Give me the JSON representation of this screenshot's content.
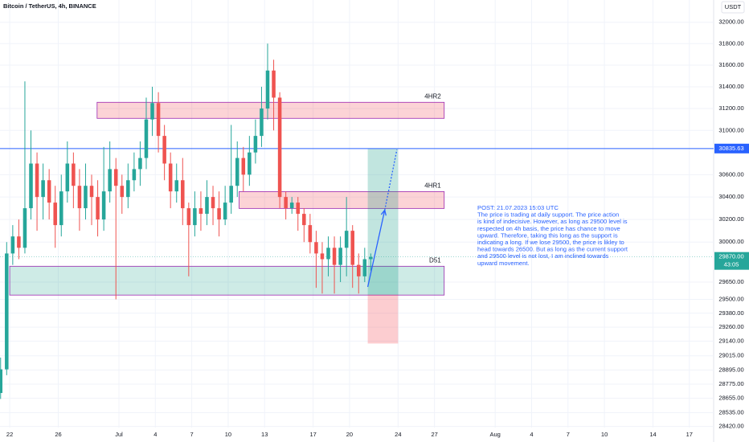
{
  "chart_data": {
    "type": "candlestick",
    "title": "Bitcoin / TetherUS, 4h, BINANCE",
    "currency": "USDT",
    "log_scale": true,
    "grid": true,
    "up_color": "#26a69a",
    "down_color": "#ef5350",
    "xlim": [
      -0.8,
      58
    ],
    "xticks": [
      {
        "value": 0,
        "label": "22"
      },
      {
        "value": 4,
        "label": "26"
      },
      {
        "value": 9,
        "label": "Jul"
      },
      {
        "value": 12,
        "label": "4"
      },
      {
        "value": 15,
        "label": "7"
      },
      {
        "value": 18,
        "label": "10"
      },
      {
        "value": 21,
        "label": "13"
      },
      {
        "value": 25,
        "label": "17"
      },
      {
        "value": 28,
        "label": "20"
      },
      {
        "value": 32,
        "label": "24"
      },
      {
        "value": 35,
        "label": "27"
      },
      {
        "value": 40,
        "label": "Aug"
      },
      {
        "value": 43,
        "label": "4"
      },
      {
        "value": 46,
        "label": "7"
      },
      {
        "value": 49,
        "label": "10"
      },
      {
        "value": 53,
        "label": "14"
      },
      {
        "value": 56,
        "label": "17"
      }
    ],
    "ylim": [
      28290,
      32210
    ],
    "yticks": [
      {
        "value": 32000,
        "label": "32000.00"
      },
      {
        "value": 31800,
        "label": "31800.00"
      },
      {
        "value": 31600,
        "label": "31600.00"
      },
      {
        "value": 31400,
        "label": "31400.00"
      },
      {
        "value": 31200,
        "label": "31200.00"
      },
      {
        "value": 31000,
        "label": "31000.00"
      },
      {
        "value": 30600,
        "label": "30600.00"
      },
      {
        "value": 30400,
        "label": "30400.00"
      },
      {
        "value": 30200,
        "label": "30200.00"
      },
      {
        "value": 30000,
        "label": "30000.00"
      },
      {
        "value": 29650,
        "label": "29650.00"
      },
      {
        "value": 29500,
        "label": "29500.00"
      },
      {
        "value": 29380,
        "label": "29380.00"
      },
      {
        "value": 29260,
        "label": "29260.00"
      },
      {
        "value": 29140,
        "label": "29140.00"
      },
      {
        "value": 29015,
        "label": "29015.00"
      },
      {
        "value": 28895,
        "label": "28895.00"
      },
      {
        "value": 28775,
        "label": "28775.00"
      },
      {
        "value": 28655,
        "label": "28655.00"
      },
      {
        "value": 28535,
        "label": "28535.00"
      },
      {
        "value": 28420,
        "label": "28420.00"
      }
    ],
    "candles": {
      "x": [
        -0.75,
        -0.25,
        0.25,
        0.75,
        1.25,
        1.75,
        2.25,
        2.75,
        3.25,
        3.75,
        4.25,
        4.75,
        5.25,
        5.75,
        6.25,
        6.75,
        7.25,
        7.75,
        8.25,
        8.75,
        9.25,
        9.75,
        10.25,
        10.75,
        11.25,
        11.75,
        12.25,
        12.75,
        13.25,
        13.75,
        14.25,
        14.75,
        15.25,
        15.75,
        16.25,
        16.75,
        17.25,
        17.75,
        18.25,
        18.75,
        19.25,
        19.75,
        20.25,
        20.75,
        21.25,
        21.75,
        22.25,
        22.75,
        23.25,
        23.75,
        24.25,
        24.75,
        25.25,
        25.75,
        26.25,
        26.75,
        27.25,
        27.75,
        28.25,
        28.75,
        29.25,
        29.75
      ],
      "open": [
        28700,
        28900,
        29900,
        30050,
        29950,
        30300,
        30700,
        30400,
        30550,
        30350,
        30150,
        30450,
        30700,
        30500,
        30300,
        30500,
        30400,
        30200,
        30450,
        30650,
        30500,
        30400,
        30550,
        30650,
        30750,
        31100,
        31250,
        30950,
        30700,
        30450,
        30550,
        30300,
        30150,
        30300,
        30250,
        30400,
        30300,
        30200,
        30350,
        30500,
        30750,
        30600,
        30800,
        30950,
        31200,
        31550,
        31300,
        30400,
        30300,
        30350,
        30250,
        30150,
        30000,
        29900,
        29850,
        29950,
        29800,
        29950,
        30100,
        29800,
        29700,
        29850
      ],
      "high": [
        29000,
        30000,
        30150,
        30200,
        31450,
        31000,
        30800,
        30700,
        30650,
        30500,
        30600,
        30900,
        30800,
        30650,
        30700,
        30600,
        30550,
        30850,
        30900,
        30750,
        30600,
        30700,
        30800,
        30900,
        31300,
        31400,
        31350,
        31050,
        30800,
        30700,
        30750,
        30350,
        30450,
        30450,
        30550,
        30500,
        30450,
        30500,
        31050,
        30900,
        30850,
        30950,
        31100,
        31400,
        31800,
        31650,
        31350,
        30450,
        30400,
        30400,
        30300,
        30250,
        30100,
        30000,
        30050,
        30050,
        30050,
        30400,
        30150,
        29900,
        29950,
        29900
      ],
      "low": [
        28650,
        28850,
        29800,
        29850,
        29900,
        30200,
        30100,
        30200,
        30200,
        29950,
        30050,
        30350,
        30300,
        30100,
        30200,
        30150,
        30050,
        30100,
        30350,
        29500,
        30250,
        30300,
        30450,
        30500,
        30650,
        30950,
        30800,
        30550,
        30300,
        30350,
        30150,
        29700,
        30050,
        30100,
        30150,
        30150,
        30050,
        30150,
        30250,
        30400,
        30450,
        30500,
        30700,
        30850,
        31100,
        31000,
        30300,
        30200,
        30250,
        30100,
        30000,
        29900,
        29600,
        29550,
        29700,
        29550,
        29650,
        29700,
        29600,
        29550,
        29650,
        29750
      ],
      "close": [
        28900,
        29900,
        30050,
        29950,
        30300,
        30700,
        30400,
        30550,
        30350,
        30150,
        30450,
        30700,
        30500,
        30300,
        30500,
        30400,
        30200,
        30450,
        30650,
        30500,
        30400,
        30550,
        30650,
        30750,
        31100,
        31250,
        30950,
        30700,
        30450,
        30550,
        30300,
        30150,
        30300,
        30250,
        30400,
        30300,
        30200,
        30350,
        30500,
        30750,
        30600,
        30800,
        30950,
        31200,
        31550,
        31300,
        30400,
        30300,
        30350,
        30250,
        30150,
        30000,
        29900,
        29850,
        29950,
        29800,
        29950,
        30100,
        29800,
        29700,
        29850,
        29870
      ]
    },
    "zones": [
      {
        "label": "4HR2",
        "start": 7.2,
        "end": 35.8,
        "top": 31257,
        "bottom": 31110,
        "fill": "rgba(242,54,69,0.22)",
        "stroke": "#9c27b0"
      },
      {
        "label": "4HR1",
        "start": 18.9,
        "end": 35.8,
        "top": 30448,
        "bottom": 30298,
        "fill": "rgba(242,54,69,0.22)",
        "stroke": "#9c27b0"
      },
      {
        "label": "D51",
        "start": 0,
        "end": 35.8,
        "top": 29788,
        "bottom": 29537,
        "fill": "rgba(8,153,129,0.2)",
        "stroke": "#9c27b0"
      }
    ],
    "position": {
      "start": 29.5,
      "end": 32.0,
      "target": 30835.63,
      "entry": 29540,
      "stop": 29120,
      "profit_color": "rgba(8,153,129,0.25)",
      "loss_color": "rgba(242,54,69,0.25)"
    },
    "arrow": {
      "x": [
        29.5,
        30.9,
        31.9
      ],
      "y": [
        29608,
        30283,
        30824
      ],
      "color": "#2962ff"
    },
    "hline": {
      "value": 30835.63,
      "color": "#2962ff"
    },
    "current_price": {
      "value": 29870,
      "label": "29870.00",
      "countdown": "43:05",
      "color": "#26a69a"
    },
    "note": {
      "color": "#2962ff",
      "lines": [
        "POST: 21.07.2023 15:03 UTC",
        "The price is trading at daily support. The price action",
        "is kind of indecisive. However, as long as 29500 level is",
        "respected on 4h basis, the price has chance to move",
        "upward. Therefore, taking this long as the support is",
        "indicating a long. If we lose 29500, the price is likley to",
        "head towards 26500. But as long as the current support",
        "and 29500 level is not lost, I am inclined towards",
        "upward movement."
      ]
    }
  }
}
